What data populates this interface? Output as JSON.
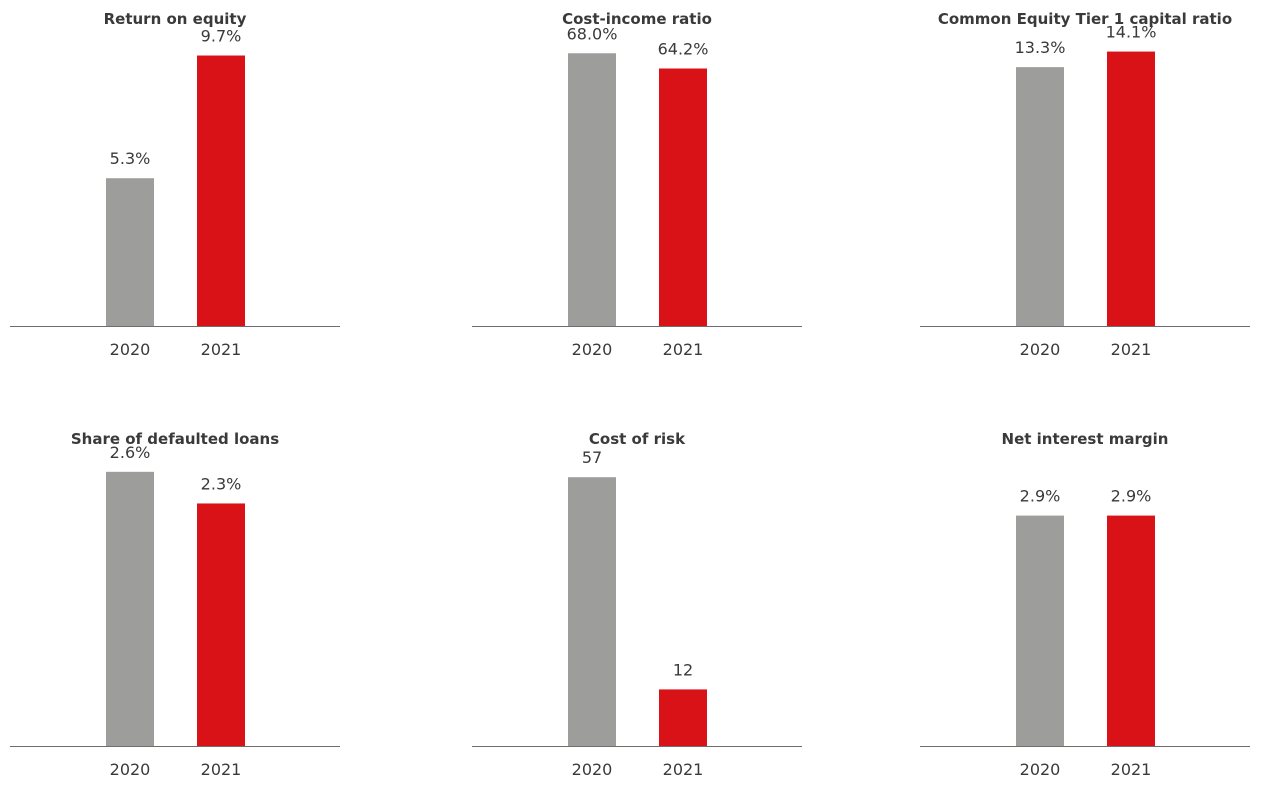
{
  "colors": {
    "bar_2020": "#9d9d9c",
    "bar_2021": "#d81217",
    "text": "#3a3a3a",
    "axis": "#6e6e6e"
  },
  "chart_data": [
    {
      "type": "bar",
      "title": "Return on equity",
      "categories": [
        "2020",
        "2021"
      ],
      "values": [
        5.3,
        9.7
      ],
      "value_labels": [
        "5.3%",
        "9.7%"
      ],
      "ylim": [
        0,
        10.4
      ],
      "grid": false,
      "legend": "none"
    },
    {
      "type": "bar",
      "title": "Cost-income ratio",
      "categories": [
        "2020",
        "2021"
      ],
      "values": [
        68.0,
        64.2
      ],
      "value_labels": [
        "68.0%",
        "64.2%"
      ],
      "ylim": [
        0,
        72.3
      ],
      "grid": false,
      "legend": "none"
    },
    {
      "type": "bar",
      "title": "Common Equity Tier 1 capital ratio",
      "categories": [
        "2020",
        "2021"
      ],
      "values": [
        13.3,
        14.1
      ],
      "value_labels": [
        "13.3%",
        "14.1%"
      ],
      "ylim": [
        0,
        14.9
      ],
      "grid": false,
      "legend": "none"
    },
    {
      "type": "bar",
      "title": "Share of defaulted loans",
      "categories": [
        "2020",
        "2021"
      ],
      "values": [
        2.6,
        2.3
      ],
      "value_labels": [
        "2.6%",
        "2.3%"
      ],
      "ylim": [
        0,
        2.75
      ],
      "grid": false,
      "legend": "none"
    },
    {
      "type": "bar",
      "title": "Cost of risk",
      "categories": [
        "2020",
        "2021"
      ],
      "values": [
        57,
        12
      ],
      "value_labels": [
        "57",
        "12"
      ],
      "ylim": [
        0,
        61.5
      ],
      "grid": false,
      "legend": "none"
    },
    {
      "type": "bar",
      "title": "Net interest margin",
      "categories": [
        "2020",
        "2021"
      ],
      "values": [
        2.9,
        2.9
      ],
      "value_labels": [
        "2.9%",
        "2.9%"
      ],
      "ylim": [
        0,
        3.65
      ],
      "grid": false,
      "legend": "none"
    }
  ]
}
